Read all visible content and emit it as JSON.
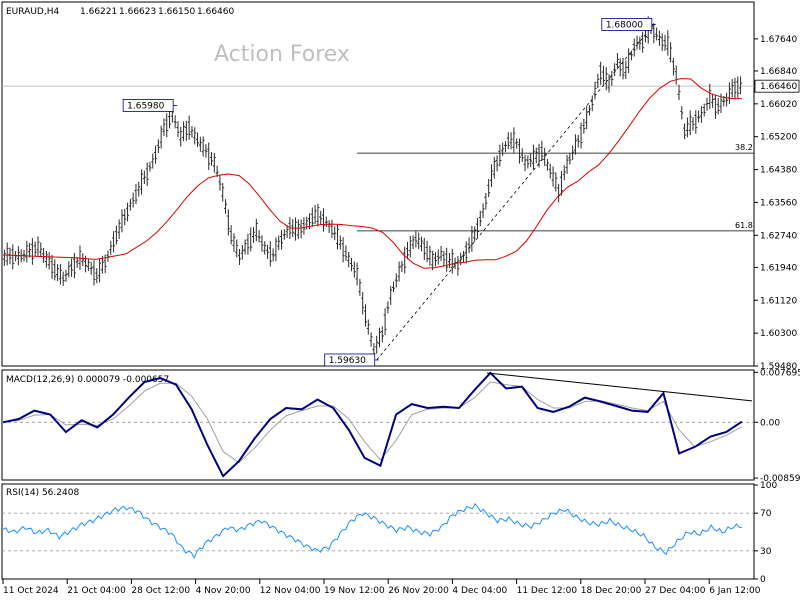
{
  "header": {
    "symbol": "EURAUD,H4",
    "open": "1.66221",
    "high": "1.66623",
    "low": "1.66150",
    "close": "1.66460"
  },
  "watermark": "Action Forex",
  "chart_data": {
    "type": "candlestick",
    "price_axis": {
      "ylim": [
        1.5948,
        1.6856
      ],
      "ticks": [
        "1.67640",
        "1.66840",
        "1.66020",
        "1.65200",
        "1.64380",
        "1.63560",
        "1.62740",
        "1.61940",
        "1.61120",
        "1.60300",
        "1.59480"
      ],
      "tick_values": [
        1.6764,
        1.6684,
        1.6602,
        1.652,
        1.6438,
        1.6356,
        1.6274,
        1.6194,
        1.6112,
        1.603,
        1.5948
      ],
      "current_price_label": "1.66460",
      "current_price": 1.6646
    },
    "time_axis": {
      "labels": [
        "11 Oct 2024",
        "21 Oct 04:00",
        "28 Oct 12:00",
        "4 Nov 20:00",
        "12 Nov 04:00",
        "19 Nov 12:00",
        "26 Nov 20:00",
        "4 Dec 04:00",
        "11 Dec 12:00",
        "18 Dec 20:00",
        "27 Dec 04:00",
        "6 Jan 12:00"
      ]
    },
    "price_series_close": [
      1.622,
      1.6225,
      1.622,
      1.6235,
      1.6245,
      1.6215,
      1.619,
      1.6165,
      1.6195,
      1.6215,
      1.62,
      1.6175,
      1.6205,
      1.626,
      1.6305,
      1.635,
      1.639,
      1.643,
      1.6475,
      1.654,
      1.6575,
      1.652,
      1.6545,
      1.651,
      1.6485,
      1.6455,
      1.638,
      1.6275,
      1.622,
      1.6255,
      1.6285,
      1.624,
      1.6225,
      1.6265,
      1.6295,
      1.6285,
      1.6305,
      1.6325,
      1.6315,
      1.629,
      1.6255,
      1.6215,
      1.6175,
      1.6075,
      1.5985,
      1.603,
      1.6125,
      1.618,
      1.6235,
      1.6265,
      1.6245,
      1.621,
      1.6225,
      1.621,
      1.62,
      1.6235,
      1.6275,
      1.6335,
      1.642,
      1.6475,
      1.651,
      1.6505,
      1.6455,
      1.6465,
      1.6485,
      1.6435,
      1.6385,
      1.645,
      1.6495,
      1.6545,
      1.6605,
      1.6685,
      1.665,
      1.6705,
      1.6685,
      1.6745,
      1.676,
      1.6792,
      1.6765,
      1.675,
      1.6675,
      1.6535,
      1.6555,
      1.6575,
      1.6615,
      1.6595,
      1.6615,
      1.6646
    ],
    "moving_average_series": [
      1.6225,
      1.6224,
      1.6223,
      1.6222,
      1.6221,
      1.622,
      1.6219,
      1.6218,
      1.6216,
      1.6214,
      1.6218,
      1.6223,
      1.6228,
      1.6244,
      1.626,
      1.6282,
      1.6309,
      1.634,
      1.6372,
      1.6398,
      1.6417,
      1.6424,
      1.6427,
      1.6423,
      1.6402,
      1.6371,
      1.6338,
      1.6309,
      1.6292,
      1.6292,
      1.6297,
      1.6301,
      1.6302,
      1.6301,
      1.6298,
      1.6296,
      1.6292,
      1.6281,
      1.6257,
      1.6226,
      1.6204,
      1.6192,
      1.6193,
      1.6198,
      1.6204,
      1.6207,
      1.6212,
      1.6213,
      1.6213,
      1.6222,
      1.6234,
      1.626,
      1.6297,
      1.6337,
      1.6369,
      1.6394,
      1.6409,
      1.6431,
      1.6449,
      1.6477,
      1.651,
      1.6546,
      1.6583,
      1.6616,
      1.6641,
      1.6658,
      1.6665,
      1.6664,
      1.6642,
      1.6627,
      1.6619,
      1.6615,
      1.6615
    ],
    "annotations": [
      {
        "label": "1.65980",
        "price": 1.6598
      },
      {
        "label": "1.59630",
        "price": 1.5963
      },
      {
        "label": "1.68000",
        "price": 1.68
      }
    ],
    "fibonacci_levels": [
      {
        "label": "38.2",
        "price": 1.6479
      },
      {
        "label": "61.8",
        "price": 1.6285
      }
    ],
    "macd": {
      "title": "MACD(12,26,9) 0.000079 -0.000657",
      "ylim": [
        -0.0089,
        0.0079
      ],
      "ticks": [
        "0.007695",
        "0.00",
        "-0.008599"
      ],
      "tick_values": [
        0.007695,
        0.0,
        -0.008599
      ],
      "macd_line": [
        0.0,
        0.0005,
        0.0018,
        0.0012,
        -0.0015,
        0.0003,
        -0.0008,
        0.0012,
        0.0038,
        0.0062,
        0.0068,
        0.0058,
        0.002,
        -0.0035,
        -0.0083,
        -0.006,
        -0.0025,
        0.0005,
        0.0022,
        0.002,
        0.0035,
        0.0022,
        -0.0012,
        -0.0055,
        -0.0067,
        0.0012,
        0.0028,
        0.0022,
        0.0024,
        0.0022,
        0.005,
        0.0076,
        0.0052,
        0.0055,
        0.0022,
        0.0016,
        0.0024,
        0.0038,
        0.0032,
        0.0025,
        0.0018,
        0.0016,
        0.0045,
        -0.0048,
        -0.0038,
        -0.0022,
        -0.0015,
        0.0001
      ],
      "signal_line": [
        0.0,
        0.0003,
        0.0011,
        0.0012,
        -0.0004,
        -0.0003,
        -0.0005,
        0.0005,
        0.0025,
        0.0048,
        0.006,
        0.006,
        0.004,
        0.0005,
        -0.0045,
        -0.0062,
        -0.004,
        -0.0012,
        0.001,
        0.0018,
        0.0025,
        0.0025,
        0.0005,
        -0.003,
        -0.0058,
        -0.0028,
        0.0012,
        0.002,
        0.0022,
        0.0022,
        0.0038,
        0.0062,
        0.0058,
        0.0055,
        0.0035,
        0.0022,
        0.0022,
        0.0032,
        0.0033,
        0.0028,
        0.0022,
        0.0018,
        0.0032,
        -0.0012,
        -0.0038,
        -0.003,
        -0.002,
        -0.0007
      ],
      "trendline": [
        {
          "x_frac": 0.0,
          "value": 0.0076
        },
        {
          "x_frac": 1.0,
          "value": 0.0033
        }
      ]
    },
    "rsi": {
      "title": "RSI(14) 56.2408",
      "ylim": [
        0,
        100
      ],
      "ticks": [
        "100",
        "70",
        "30",
        "0"
      ],
      "tick_values": [
        100,
        70,
        30,
        0
      ],
      "values": [
        53,
        50,
        55,
        49,
        52,
        45,
        51,
        58,
        62,
        68,
        74,
        76,
        72,
        62,
        55,
        48,
        32,
        25,
        38,
        46,
        55,
        52,
        58,
        62,
        55,
        48,
        42,
        35,
        30,
        34,
        48,
        62,
        70,
        65,
        58,
        52,
        55,
        50,
        48,
        55,
        68,
        74,
        78,
        70,
        62,
        64,
        58,
        56,
        62,
        70,
        74,
        66,
        60,
        58,
        62,
        56,
        52,
        46,
        34,
        28,
        40,
        50,
        48,
        55,
        50,
        56
      ]
    }
  }
}
